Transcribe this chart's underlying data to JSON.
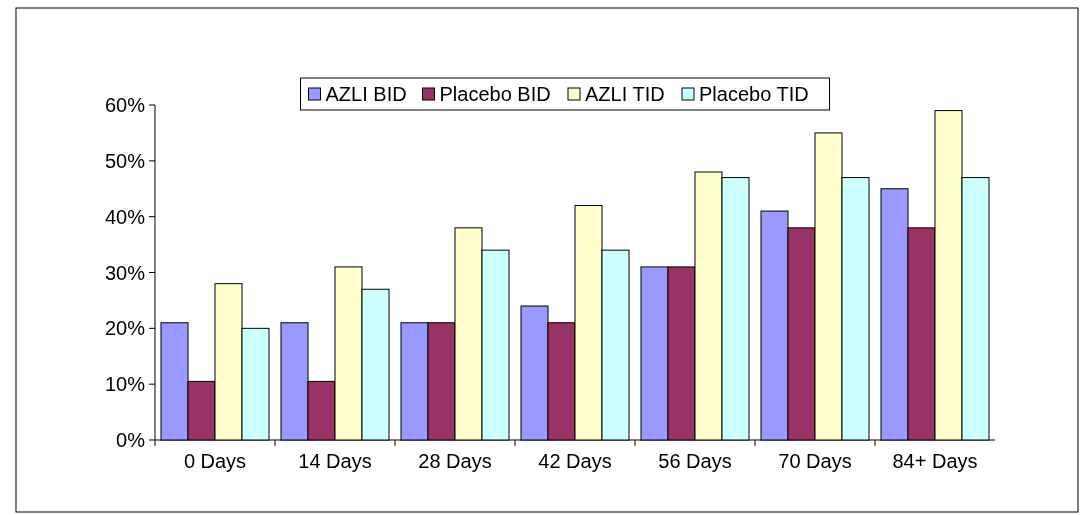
{
  "chart_data": {
    "type": "bar",
    "categories": [
      "0 Days",
      "14 Days",
      "28 Days",
      "42 Days",
      "56 Days",
      "70 Days",
      "84+ Days"
    ],
    "series": [
      {
        "name": "AZLI BID",
        "color": "#9999ff",
        "values": [
          21,
          21,
          21,
          24,
          31,
          41,
          45
        ]
      },
      {
        "name": "Placebo BID",
        "color": "#993366",
        "values": [
          10.5,
          10.5,
          21,
          21,
          31,
          38,
          38
        ]
      },
      {
        "name": "AZLI TID",
        "color": "#ffffcc",
        "values": [
          28,
          31,
          38,
          42,
          48,
          55,
          59
        ]
      },
      {
        "name": "Placebo TID",
        "color": "#ccffff",
        "values": [
          20,
          27,
          34,
          34,
          47,
          47,
          47
        ]
      }
    ],
    "ylim": [
      0,
      60
    ],
    "yticks": [
      {
        "value": 0,
        "label": "0%"
      },
      {
        "value": 10,
        "label": "10%"
      },
      {
        "value": 20,
        "label": "20%"
      },
      {
        "value": 30,
        "label": "30%"
      },
      {
        "value": 40,
        "label": "40%"
      },
      {
        "value": 50,
        "label": "50%"
      },
      {
        "value": 60,
        "label": "60%"
      }
    ],
    "legend": "top",
    "grid": false
  }
}
